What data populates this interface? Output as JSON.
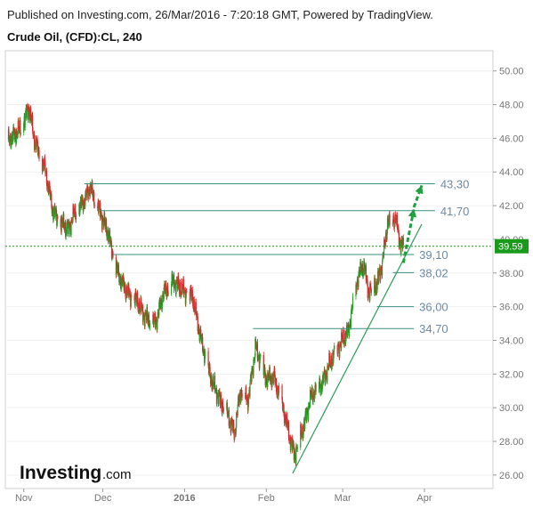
{
  "header": {
    "published": "Published on Investing.com, 26/Mar/2016 - 7:20:18 GMT, Powered by TradingView.",
    "symbol": "Crude Oil, (CFD):CL, 240"
  },
  "logo": {
    "brand": "Investing",
    "suffix": ".com"
  },
  "colors": {
    "up": "#2ca02c",
    "down": "#d62728",
    "level_line": "#3a8f7f",
    "trend_line": "#2e9a5a",
    "arrow": "#1ea03c",
    "current_price_line": "#1a9a1a",
    "current_price_bg": "#1a9a1a",
    "axis_text": "#777777",
    "level_label": "#6d8aa8"
  },
  "chart_data": {
    "type": "candlestick",
    "x_axis": {
      "ticks": [
        "Nov",
        "Dec",
        "2016",
        "Feb",
        "Mar",
        "Apr"
      ],
      "dates": [
        "2015-11-01",
        "2015-12-01",
        "2016-01-01",
        "2016-02-01",
        "2016-03-01",
        "2016-04-01"
      ]
    },
    "y_axis": {
      "ylim": [
        25.2,
        51.2
      ],
      "ticks": [
        26,
        28,
        30,
        32,
        34,
        36,
        38,
        40,
        42,
        44,
        46,
        48,
        50
      ],
      "tick_labels": [
        "26.00",
        "28.00",
        "30.00",
        "32.00",
        "34.00",
        "36.00",
        "38.00",
        "40.00",
        "42.00",
        "44.00",
        "46.00",
        "48.00",
        "50.00"
      ]
    },
    "current_price": {
      "value": 39.59,
      "label": "39.59"
    },
    "price_path": [
      [
        "2015-10-26",
        45.9
      ],
      [
        "2015-10-30",
        46.4
      ],
      [
        "2015-11-03",
        47.8
      ],
      [
        "2015-11-05",
        45.9
      ],
      [
        "2015-11-09",
        44.2
      ],
      [
        "2015-11-12",
        41.7
      ],
      [
        "2015-11-16",
        40.8
      ],
      [
        "2015-11-18",
        40.6
      ],
      [
        "2015-11-20",
        41.5
      ],
      [
        "2015-11-24",
        42.3
      ],
      [
        "2015-11-26",
        43.1
      ],
      [
        "2015-11-30",
        41.6
      ],
      [
        "2015-12-03",
        40.3
      ],
      [
        "2015-12-07",
        37.8
      ],
      [
        "2015-12-10",
        36.9
      ],
      [
        "2015-12-14",
        36.3
      ],
      [
        "2015-12-17",
        35.4
      ],
      [
        "2015-12-21",
        35.0
      ],
      [
        "2015-12-24",
        36.8
      ],
      [
        "2015-12-28",
        37.5
      ],
      [
        "2015-12-31",
        37.0
      ],
      [
        "2016-01-04",
        36.6
      ],
      [
        "2016-01-07",
        34.2
      ],
      [
        "2016-01-11",
        31.7
      ],
      [
        "2016-01-14",
        30.6
      ],
      [
        "2016-01-18",
        29.3
      ],
      [
        "2016-01-20",
        28.5
      ],
      [
        "2016-01-22",
        30.9
      ],
      [
        "2016-01-25",
        30.4
      ],
      [
        "2016-01-28",
        33.6
      ],
      [
        "2016-02-01",
        31.7
      ],
      [
        "2016-02-04",
        31.8
      ],
      [
        "2016-02-08",
        29.6
      ],
      [
        "2016-02-10",
        28.1
      ],
      [
        "2016-02-12",
        27.2
      ],
      [
        "2016-02-15",
        28.8
      ],
      [
        "2016-02-18",
        30.7
      ],
      [
        "2016-02-22",
        31.4
      ],
      [
        "2016-02-25",
        32.6
      ],
      [
        "2016-02-29",
        33.8
      ],
      [
        "2016-03-03",
        34.5
      ],
      [
        "2016-03-07",
        37.9
      ],
      [
        "2016-03-09",
        38.4
      ],
      [
        "2016-03-11",
        36.8
      ],
      [
        "2016-03-14",
        37.3
      ],
      [
        "2016-03-16",
        38.6
      ],
      [
        "2016-03-18",
        40.9
      ],
      [
        "2016-03-21",
        41.3
      ],
      [
        "2016-03-23",
        39.6
      ],
      [
        "2016-03-24",
        39.59
      ]
    ],
    "levels": [
      {
        "value": 43.3,
        "label": "43,30",
        "from": "2015-11-24",
        "to": "2016-04-05"
      },
      {
        "value": 41.7,
        "label": "41,70",
        "from": "2015-11-30",
        "to": "2016-04-05"
      },
      {
        "value": 39.1,
        "label": "39,10",
        "from": "2015-12-05",
        "to": "2016-03-28"
      },
      {
        "value": 38.02,
        "label": "38,02",
        "from": "2016-03-20",
        "to": "2016-03-28"
      },
      {
        "value": 36.0,
        "label": "36,00",
        "from": "2016-03-14",
        "to": "2016-03-28"
      },
      {
        "value": 34.7,
        "label": "34,70",
        "from": "2016-01-27",
        "to": "2016-03-28"
      }
    ],
    "trendlines": [
      {
        "from": [
          "2016-02-11",
          26.1
        ],
        "to": [
          "2016-03-31",
          40.9
        ]
      }
    ],
    "arrows": [
      {
        "from": [
          "2016-03-24",
          38.6
        ],
        "to": [
          "2016-03-28",
          41.8
        ]
      },
      {
        "from": [
          "2016-03-28",
          41.9
        ],
        "to": [
          "2016-03-31",
          43.2
        ]
      }
    ]
  }
}
